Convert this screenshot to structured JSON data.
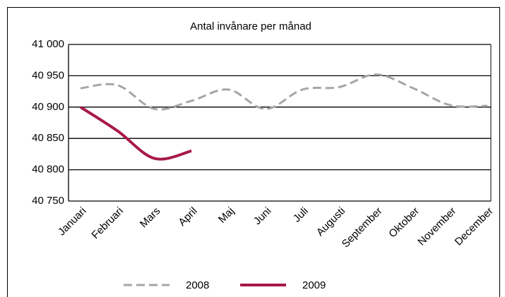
{
  "chart_data": {
    "type": "line",
    "title": "Antal invånare per månad",
    "categories": [
      "Januari",
      "Februari",
      "Mars",
      "April",
      "Maj",
      "Juni",
      "Juli",
      "Augusti",
      "September",
      "Oktober",
      "November",
      "December"
    ],
    "series": [
      {
        "name": "2008",
        "color": "#a6a6a6",
        "dashed": true,
        "values": [
          40930,
          40935,
          40897,
          40910,
          40928,
          40897,
          40928,
          40932,
          40952,
          40930,
          40903,
          40902
        ]
      },
      {
        "name": "2009",
        "color": "#a8184a",
        "dashed": false,
        "values": [
          40900,
          40862,
          40818,
          40830,
          null,
          null,
          null,
          null,
          null,
          null,
          null,
          null
        ]
      }
    ],
    "ylim": [
      40750,
      41000
    ],
    "yticks": [
      {
        "value": 40750,
        "label": "40 750"
      },
      {
        "value": 40800,
        "label": "40 800"
      },
      {
        "value": 40850,
        "label": "40 850"
      },
      {
        "value": 40900,
        "label": "40 900"
      },
      {
        "value": 40950,
        "label": "40 950"
      },
      {
        "value": 41000,
        "label": "41 000"
      }
    ],
    "grid": true,
    "smooth": true,
    "legend": "bottom"
  }
}
